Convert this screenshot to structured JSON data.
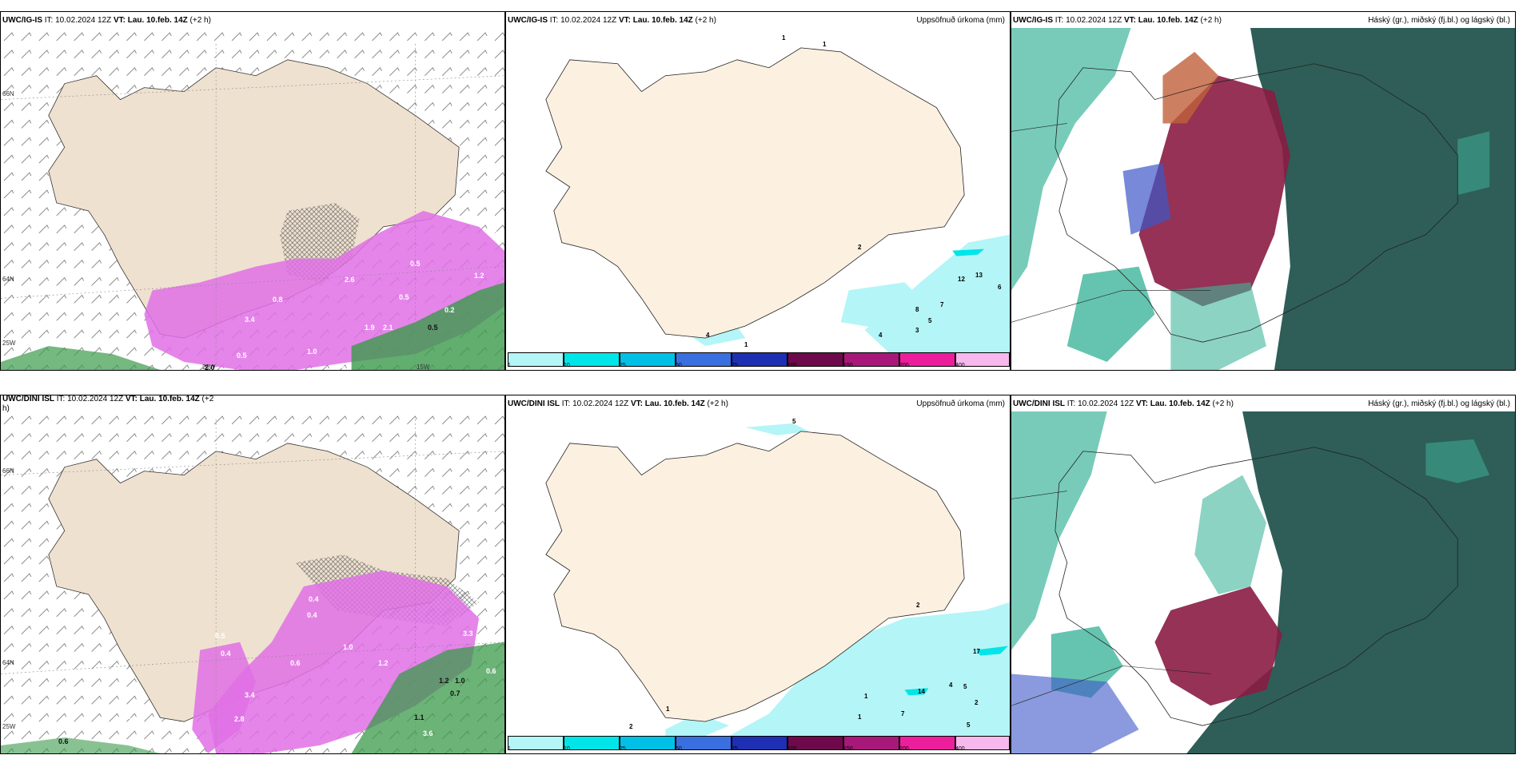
{
  "panels": {
    "wind_top": {
      "title_model": "UWC/IG-IS",
      "title_rest": " IT: 10.02.2024 12Z ",
      "vt_label": "VT: Lau. 10.feb. 14Z",
      "offset": "(+2 h)",
      "axis": {
        "lat66": "66N",
        "lat64": "64N",
        "lon25": "25W",
        "lon20": "20W",
        "lon15": "15W"
      },
      "labels": [
        "0.5",
        "0.5",
        "1.2",
        "0.2",
        "0.5",
        "3.4",
        "0.8",
        "1.9",
        "2.1",
        "3.4",
        "0.5",
        "2.6",
        "1.0",
        "2.0",
        "0.5"
      ]
    },
    "precip_top": {
      "title_model": "UWC/IG-IS",
      "title_rest": " IT: 10.02.2024 12Z ",
      "vt_label": "VT: Lau. 10.feb. 14Z",
      "offset": "(+2 h)",
      "right_title": "Uppsöfnuð úrkoma (mm)",
      "numbers": [
        "1",
        "1",
        "12",
        "13",
        "6",
        "7",
        "8",
        "5",
        "4",
        "3",
        "2",
        "4",
        "1"
      ]
    },
    "cloud_top": {
      "title_model": "UWC/IG-IS",
      "title_rest": " IT: 10.02.2024 12Z ",
      "vt_label": "VT: Lau. 10.feb. 14Z",
      "offset": "(+2 h)",
      "right_title": "Háský (gr.), miðský (fj.bl.) og lágský (bl.)"
    },
    "wind_bottom": {
      "title_model": "UWC/DINI ISL",
      "title_rest": " IT: 10.02.2024 12Z ",
      "vt_label": "VT: Lau. 10.feb. 14Z",
      "offset": "(+2",
      "offset_wrap": "h)",
      "axis": {
        "lat66": "66N",
        "lat64": "64N",
        "lon25": "25W"
      },
      "labels": [
        "0.4",
        "0.4",
        "0.5",
        "0.4",
        "0.6",
        "1.2",
        "1.0",
        "0.6",
        "3.4",
        "2.8",
        "1.2",
        "0.7",
        "0.6",
        "1.0",
        "3.3",
        "1.1",
        "3.6",
        "3.4",
        "1.7",
        "0.6"
      ]
    },
    "precip_bottom": {
      "title_model": "UWC/DINI ISL",
      "title_rest": " IT: 10.02.2024 12Z ",
      "vt_label": "VT: Lau. 10.feb. 14Z",
      "offset": "(+2 h)",
      "right_title": "Uppsöfnuð úrkoma (mm)",
      "numbers": [
        "5",
        "17",
        "2",
        "14",
        "4",
        "5",
        "2",
        "7",
        "1",
        "1",
        "1",
        "2",
        "5"
      ]
    },
    "cloud_bottom": {
      "title_model": "UWC/DINI ISL",
      "title_rest": " IT: 10.02.2024 12Z ",
      "vt_label": "VT: Lau. 10.feb. 14Z",
      "offset": "(+2 h)",
      "right_title": "Háský (gr.), miðský (fj.bl.) og lágský (bl.)"
    }
  },
  "colorbar": {
    "ticks": [
      "1",
      "10",
      "25",
      "50",
      "75",
      "100",
      "150",
      "200",
      "400"
    ],
    "colors": [
      "#b4f5f7",
      "#00e5e8",
      "#00c0e6",
      "#3a6fe0",
      "#1e2fb4",
      "#6e0a4b",
      "#a8187a",
      "#ec1e9c",
      "#f7b8ee"
    ]
  },
  "colors": {
    "land": "#efe1d0",
    "land_precip": "#fcf0e1",
    "precip_magenta": "#e070e6",
    "precip_green": "#3a9a4a",
    "cloud_dark": "#2e5e57",
    "cloud_teal": "#3fb59b",
    "cloud_maroon": "#8a1c43",
    "cloud_blue": "#3d57c8"
  }
}
